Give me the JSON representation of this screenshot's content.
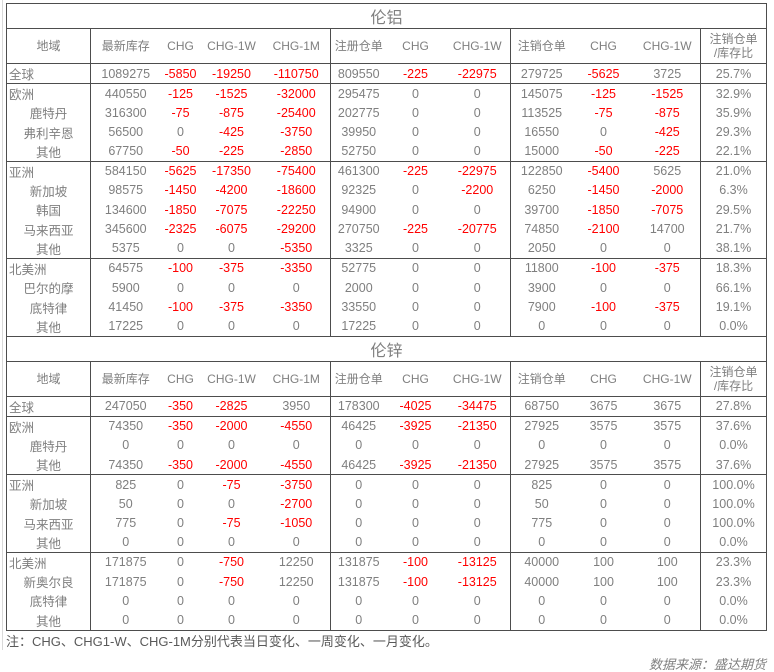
{
  "meta": {
    "note": "注：CHG、CHG1-W、CHG-1M分别代表当日变化、一周变化、一月变化。",
    "source": "数据来源：盛达期货"
  },
  "colors": {
    "negative_value": "#ff0000",
    "normal_text": "#7f7f7f",
    "table_border": "#4d4d4d",
    "note_text": "#595959"
  },
  "columns": {
    "region": "地域",
    "inventory": "最新库存",
    "chg1": "CHG",
    "chg1w1": "CHG-1W",
    "chg1m": "CHG-1M",
    "registered": "注册仓单",
    "chg2": "CHG",
    "chg1w2": "CHG-1W",
    "cancelled": "注销仓单",
    "chg3": "CHG",
    "chg1w3": "CHG-1W",
    "ratio_line1": "注销仓单",
    "ratio_line2": "/库存比"
  },
  "tables": [
    {
      "title": "伦铝",
      "rows": [
        {
          "region": "全球",
          "child": false,
          "values": [
            "1089275",
            "-5850",
            "-19250",
            "-110750",
            "809550",
            "-225",
            "-22975",
            "279725",
            "-5625",
            "3725",
            "25.7%"
          ]
        },
        {
          "region": "欧洲",
          "child": false,
          "values": [
            "440550",
            "-125",
            "-1525",
            "-32000",
            "295475",
            "0",
            "0",
            "145075",
            "-125",
            "-1525",
            "32.9%"
          ]
        },
        {
          "region": "鹿特丹",
          "child": true,
          "values": [
            "316300",
            "-75",
            "-875",
            "-25400",
            "202775",
            "0",
            "0",
            "113525",
            "-75",
            "-875",
            "35.9%"
          ]
        },
        {
          "region": "弗利辛恩",
          "child": true,
          "values": [
            "56500",
            "0",
            "-425",
            "-3750",
            "39950",
            "0",
            "0",
            "16550",
            "0",
            "-425",
            "29.3%"
          ]
        },
        {
          "region": "其他",
          "child": true,
          "values": [
            "67750",
            "-50",
            "-225",
            "-2850",
            "52750",
            "0",
            "0",
            "15000",
            "-50",
            "-225",
            "22.1%"
          ]
        },
        {
          "region": "亚洲",
          "child": false,
          "values": [
            "584150",
            "-5625",
            "-17350",
            "-75400",
            "461300",
            "-225",
            "-22975",
            "122850",
            "-5400",
            "5625",
            "21.0%"
          ]
        },
        {
          "region": "新加坡",
          "child": true,
          "values": [
            "98575",
            "-1450",
            "-4200",
            "-18600",
            "92325",
            "0",
            "-2200",
            "6250",
            "-1450",
            "-2000",
            "6.3%"
          ]
        },
        {
          "region": "韩国",
          "child": true,
          "values": [
            "134600",
            "-1850",
            "-7075",
            "-22250",
            "94900",
            "0",
            "0",
            "39700",
            "-1850",
            "-7075",
            "29.5%"
          ]
        },
        {
          "region": "马来西亚",
          "child": true,
          "values": [
            "345600",
            "-2325",
            "-6075",
            "-29200",
            "270750",
            "-225",
            "-20775",
            "74850",
            "-2100",
            "14700",
            "21.7%"
          ]
        },
        {
          "region": "其他",
          "child": true,
          "values": [
            "5375",
            "0",
            "0",
            "-5350",
            "3325",
            "0",
            "0",
            "2050",
            "0",
            "0",
            "38.1%"
          ]
        },
        {
          "region": "北美洲",
          "child": false,
          "values": [
            "64575",
            "-100",
            "-375",
            "-3350",
            "52775",
            "0",
            "0",
            "11800",
            "-100",
            "-375",
            "18.3%"
          ]
        },
        {
          "region": "巴尔的摩",
          "child": true,
          "values": [
            "5900",
            "0",
            "0",
            "0",
            "2000",
            "0",
            "0",
            "3900",
            "0",
            "0",
            "66.1%"
          ]
        },
        {
          "region": "底特律",
          "child": true,
          "values": [
            "41450",
            "-100",
            "-375",
            "-3350",
            "33550",
            "0",
            "0",
            "7900",
            "-100",
            "-375",
            "19.1%"
          ]
        },
        {
          "region": "其他",
          "child": true,
          "values": [
            "17225",
            "0",
            "0",
            "0",
            "17225",
            "0",
            "0",
            "0",
            "0",
            "0",
            "0.0%"
          ]
        }
      ]
    },
    {
      "title": "伦锌",
      "rows": [
        {
          "region": "全球",
          "child": false,
          "values": [
            "247050",
            "-350",
            "-2825",
            "3950",
            "178300",
            "-4025",
            "-34475",
            "68750",
            "3675",
            "3675",
            "27.8%"
          ]
        },
        {
          "region": "欧洲",
          "child": false,
          "values": [
            "74350",
            "-350",
            "-2000",
            "-4550",
            "46425",
            "-3925",
            "-21350",
            "27925",
            "3575",
            "3575",
            "37.6%"
          ]
        },
        {
          "region": "鹿特丹",
          "child": true,
          "values": [
            "0",
            "0",
            "0",
            "0",
            "0",
            "0",
            "0",
            "0",
            "0",
            "0",
            "0.0%"
          ]
        },
        {
          "region": "其他",
          "child": true,
          "values": [
            "74350",
            "-350",
            "-2000",
            "-4550",
            "46425",
            "-3925",
            "-21350",
            "27925",
            "3575",
            "3575",
            "37.6%"
          ]
        },
        {
          "region": "亚洲",
          "child": false,
          "values": [
            "825",
            "0",
            "-75",
            "-3750",
            "0",
            "0",
            "0",
            "825",
            "0",
            "0",
            "100.0%"
          ]
        },
        {
          "region": "新加坡",
          "child": true,
          "values": [
            "50",
            "0",
            "0",
            "-2700",
            "0",
            "0",
            "0",
            "50",
            "0",
            "0",
            "100.0%"
          ]
        },
        {
          "region": "马来西亚",
          "child": true,
          "values": [
            "775",
            "0",
            "-75",
            "-1050",
            "0",
            "0",
            "0",
            "775",
            "0",
            "0",
            "100.0%"
          ]
        },
        {
          "region": "其他",
          "child": true,
          "values": [
            "0",
            "0",
            "0",
            "0",
            "0",
            "0",
            "0",
            "0",
            "0",
            "0",
            "0.0%"
          ]
        },
        {
          "region": "北美洲",
          "child": false,
          "values": [
            "171875",
            "0",
            "-750",
            "12250",
            "131875",
            "-100",
            "-13125",
            "40000",
            "100",
            "100",
            "23.3%"
          ]
        },
        {
          "region": "新奥尔良",
          "child": true,
          "values": [
            "171875",
            "0",
            "-750",
            "12250",
            "131875",
            "-100",
            "-13125",
            "40000",
            "100",
            "100",
            "23.3%"
          ]
        },
        {
          "region": "底特律",
          "child": true,
          "values": [
            "0",
            "0",
            "0",
            "0",
            "0",
            "0",
            "0",
            "0",
            "0",
            "0",
            "0.0%"
          ]
        },
        {
          "region": "其他",
          "child": true,
          "values": [
            "0",
            "0",
            "0",
            "0",
            "0",
            "0",
            "0",
            "0",
            "0",
            "0",
            "0.0%"
          ]
        }
      ]
    }
  ]
}
